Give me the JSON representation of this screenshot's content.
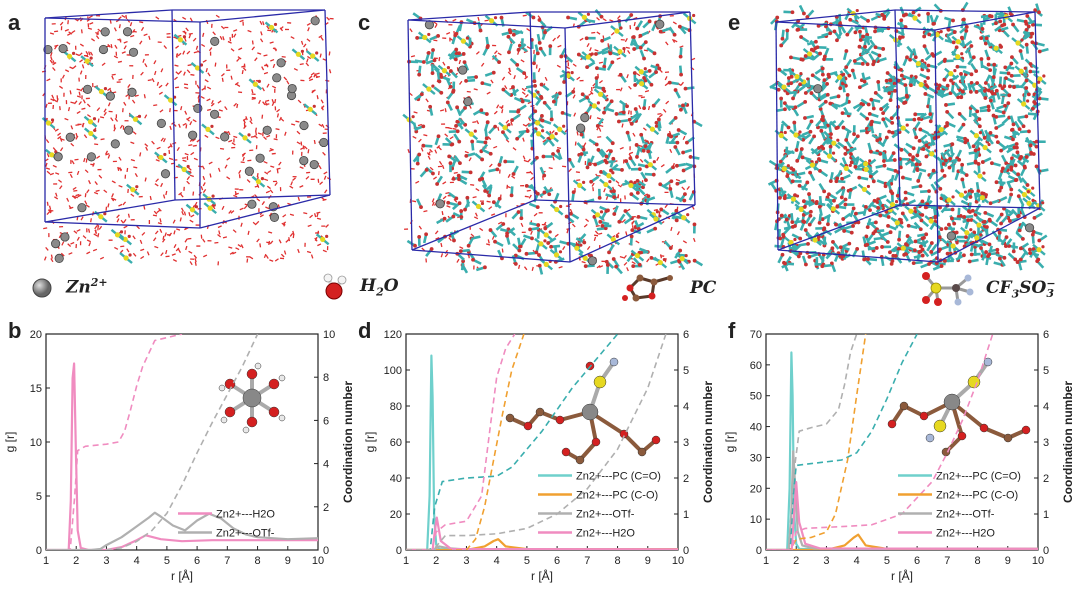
{
  "panel_labels": {
    "a": "a",
    "b": "b",
    "c": "c",
    "d": "d",
    "e": "e",
    "f": "f"
  },
  "species_legend": {
    "zn": {
      "base": "Zn",
      "sup": "2+"
    },
    "h2o": {
      "pre": "H",
      "sub": "2",
      "post": "O"
    },
    "pc": {
      "text": "PC"
    },
    "otf": {
      "pre": "CF",
      "sub1": "3",
      "mid": "SO",
      "sub2": "3",
      "sup": "−"
    }
  },
  "colors": {
    "box_edge": "#2a2aa8",
    "water": "#e03030",
    "zn": "#8a8a8a",
    "pc_body": "#3aaeae",
    "pc_oxygen": "#c83232",
    "sulfur": "#e6d820",
    "h2o_series": "#f08cc0",
    "otf_series": "#b0b0b0",
    "pc_co_double": "#6fd0cc",
    "pc_co_single": "#f0a030"
  },
  "chart_data": [
    {
      "type": "line",
      "panel": "b",
      "xlabel": "r [Å]",
      "ylabel": "g [r]",
      "y2label": "Coordination number",
      "xlim": [
        1,
        10
      ],
      "ylim": [
        0,
        22
      ],
      "y2lim": [
        0,
        10
      ],
      "xticks": [
        "1",
        "2",
        "3",
        "4",
        "5",
        "6",
        "7",
        "8",
        "9",
        "10"
      ],
      "yticks": [
        "0",
        "5",
        "10",
        "15",
        "20"
      ],
      "y2ticks": [
        "0",
        "2",
        "4",
        "6",
        "8",
        "10"
      ],
      "legend_position": "bottom-right",
      "series": [
        {
          "name": "Zn2+---H2O",
          "color": "#f08cc0",
          "style": "solid",
          "x": [
            1.0,
            1.75,
            1.82,
            1.88,
            1.93,
            1.99,
            2.05,
            2.15,
            2.4,
            3.0,
            3.5,
            4.0,
            4.3,
            4.8,
            5.5,
            6.5,
            7.5,
            8.5,
            10
          ],
          "y": [
            0,
            0,
            5,
            17.5,
            19,
            10,
            2,
            0.2,
            0,
            0,
            0.3,
            1.0,
            1.5,
            1.1,
            0.9,
            1.0,
            1.0,
            1.0,
            1.0
          ]
        },
        {
          "name": "Zn2+---OTf-",
          "color": "#b0b0b0",
          "style": "solid",
          "x": [
            1.0,
            2.5,
            2.8,
            3.0,
            3.5,
            4.0,
            4.4,
            4.6,
            4.8,
            5.2,
            5.6,
            6.0,
            6.4,
            6.8,
            7.2,
            7.6,
            8.0,
            8.5,
            9.0,
            10
          ],
          "y": [
            0,
            0,
            0.1,
            0.5,
            1.3,
            2.4,
            3.3,
            3.8,
            3.4,
            2.5,
            2.0,
            3.0,
            3.7,
            3.2,
            2.2,
            1.6,
            1.3,
            1.2,
            1.1,
            1.2
          ]
        },
        {
          "name": "",
          "axis": "y2",
          "color": "#f08cc0",
          "style": "dashed",
          "x": [
            1.0,
            1.8,
            1.95,
            2.05,
            2.3,
            3.0,
            3.4,
            3.6,
            3.8,
            4.0,
            4.2,
            4.6,
            5.5
          ],
          "y": [
            0,
            0,
            2.5,
            4.6,
            4.8,
            4.9,
            5.0,
            5.5,
            6.5,
            7.6,
            8.5,
            9.7,
            10
          ]
        },
        {
          "name": "",
          "axis": "y2",
          "color": "#b0b0b0",
          "style": "dashed",
          "x": [
            1.0,
            3.0,
            3.5,
            4.0,
            4.5,
            5.0,
            5.5,
            6.0,
            6.5,
            7.0,
            7.5,
            8.0
          ],
          "y": [
            0,
            0,
            0.1,
            0.4,
            0.9,
            1.7,
            3.0,
            4.5,
            5.9,
            7.2,
            8.5,
            10
          ]
        }
      ]
    },
    {
      "type": "line",
      "panel": "d",
      "xlabel": "r [Å]",
      "ylabel": "g [r]",
      "y2label": "Coordination number",
      "xlim": [
        1,
        10
      ],
      "ylim": [
        0,
        120
      ],
      "y2lim": [
        0,
        6
      ],
      "xticks": [
        "1",
        "2",
        "3",
        "4",
        "5",
        "6",
        "7",
        "8",
        "9",
        "10"
      ],
      "yticks": [
        "0",
        "20",
        "40",
        "60",
        "80",
        "100",
        "120"
      ],
      "y2ticks": [
        "0",
        "1",
        "2",
        "3",
        "4",
        "5",
        "6"
      ],
      "legend_position": "bottom-right",
      "series": [
        {
          "name": "Zn2+---PC (C=O)",
          "color": "#6fd0cc",
          "style": "solid",
          "x": [
            1.0,
            1.7,
            1.78,
            1.84,
            1.88,
            1.93,
            2.0,
            2.1,
            3.0,
            10
          ],
          "y": [
            0,
            0,
            30,
            108,
            85,
            20,
            3,
            0.5,
            0.3,
            0.5
          ]
        },
        {
          "name": "Zn2+---PC (C-O)",
          "color": "#f0a030",
          "style": "solid",
          "x": [
            1.0,
            3.0,
            3.6,
            3.9,
            4.05,
            4.3,
            5.0,
            10
          ],
          "y": [
            0,
            0,
            2,
            5,
            6,
            2,
            0.5,
            0.5
          ]
        },
        {
          "name": "Zn2+---OTf-",
          "color": "#b0b0b0",
          "style": "solid",
          "x": [
            1.0,
            1.9,
            2.1,
            2.4,
            3.0,
            10
          ],
          "y": [
            0,
            0,
            2,
            1,
            0.3,
            0.3
          ]
        },
        {
          "name": "Zn2+---H2O",
          "color": "#f08cc0",
          "style": "solid",
          "x": [
            1.0,
            1.88,
            1.95,
            2.02,
            2.15,
            2.5,
            10
          ],
          "y": [
            0,
            0,
            10,
            18,
            5,
            0.5,
            0.4
          ]
        },
        {
          "name": "",
          "axis": "y2",
          "color": "#3aaeae",
          "style": "dashed",
          "x": [
            1.0,
            1.8,
            1.95,
            2.2,
            3.0,
            4.0,
            4.5,
            5.0,
            5.5,
            6.0,
            6.5,
            7.0,
            7.5,
            8.0
          ],
          "y": [
            0,
            0,
            1.2,
            1.9,
            2.0,
            2.05,
            2.3,
            2.8,
            3.3,
            3.9,
            4.5,
            5.0,
            5.5,
            6.0
          ]
        },
        {
          "name": "",
          "axis": "y2",
          "color": "#f0a030",
          "style": "dashed",
          "x": [
            1.0,
            3.0,
            3.3,
            3.6,
            3.9,
            4.2,
            4.5,
            4.9
          ],
          "y": [
            0,
            0,
            0.3,
            1.2,
            2.5,
            3.8,
            5.0,
            6.0
          ]
        },
        {
          "name": "",
          "axis": "y2",
          "color": "#f08cc0",
          "style": "dashed",
          "x": [
            1.0,
            1.85,
            2.0,
            2.3,
            3.0,
            3.5,
            3.8,
            4.0,
            4.3,
            4.6
          ],
          "y": [
            0,
            0,
            0.5,
            0.7,
            0.8,
            1.5,
            3.5,
            4.8,
            5.6,
            6.0
          ]
        },
        {
          "name": "",
          "axis": "y2",
          "color": "#b0b0b0",
          "style": "dashed",
          "x": [
            1.0,
            1.9,
            2.3,
            3.0,
            4.0,
            5.0,
            6.0,
            7.0,
            8.0,
            9.0,
            9.6
          ],
          "y": [
            0,
            0,
            0.4,
            0.4,
            0.45,
            0.6,
            1.0,
            1.7,
            2.8,
            4.5,
            6.0
          ]
        }
      ]
    },
    {
      "type": "line",
      "panel": "f",
      "xlabel": "r [Å]",
      "ylabel": "g [r]",
      "y2label": "Coordination number",
      "xlim": [
        1,
        10
      ],
      "ylim": [
        0,
        70
      ],
      "y2lim": [
        0,
        6
      ],
      "xticks": [
        "1",
        "2",
        "3",
        "4",
        "5",
        "6",
        "7",
        "8",
        "9",
        "10"
      ],
      "yticks": [
        "0",
        "10",
        "20",
        "30",
        "40",
        "50",
        "60",
        "70"
      ],
      "y2ticks": [
        "0",
        "1",
        "2",
        "3",
        "4",
        "5",
        "6"
      ],
      "legend_position": "bottom-right",
      "series": [
        {
          "name": "Zn2+---PC (C=O)",
          "color": "#6fd0cc",
          "style": "solid",
          "x": [
            1.0,
            1.7,
            1.78,
            1.84,
            1.88,
            1.93,
            2.0,
            2.1,
            3.0,
            10
          ],
          "y": [
            0,
            0,
            20,
            64,
            50,
            12,
            2,
            0.4,
            0.3,
            0.4
          ]
        },
        {
          "name": "Zn2+---PC (C-O)",
          "color": "#f0a030",
          "style": "solid",
          "x": [
            1.0,
            3.0,
            3.6,
            3.9,
            4.05,
            4.3,
            5.0,
            10
          ],
          "y": [
            0,
            0,
            1.5,
            4,
            5,
            1.5,
            0.4,
            0.4
          ]
        },
        {
          "name": "Zn2+---OTf-",
          "color": "#b0b0b0",
          "style": "solid",
          "x": [
            1.0,
            1.75,
            1.83,
            1.9,
            1.97,
            2.05,
            2.2,
            2.6,
            10
          ],
          "y": [
            0,
            0,
            10,
            32,
            20,
            6,
            1.5,
            0.5,
            0.4
          ]
        },
        {
          "name": "Zn2+---H2O",
          "color": "#f08cc0",
          "style": "solid",
          "x": [
            1.0,
            1.85,
            1.93,
            2.0,
            2.1,
            2.3,
            2.8,
            10
          ],
          "y": [
            0,
            0,
            12,
            22,
            9,
            2,
            0.5,
            0.4
          ]
        },
        {
          "name": "",
          "axis": "y2",
          "color": "#3aaeae",
          "style": "dashed",
          "x": [
            1.0,
            1.8,
            1.9,
            2.0,
            2.5,
            3.5,
            4.0,
            4.5,
            5.0,
            5.5,
            6.0
          ],
          "y": [
            0,
            0,
            1.5,
            2.35,
            2.4,
            2.5,
            2.7,
            3.3,
            4.2,
            5.2,
            6.0
          ]
        },
        {
          "name": "",
          "axis": "y2",
          "color": "#f0a030",
          "style": "dashed",
          "x": [
            1.0,
            1.8,
            2.0,
            2.5,
            3.0,
            3.3,
            3.7,
            4.0,
            4.3
          ],
          "y": [
            0,
            0,
            0.3,
            0.35,
            0.5,
            1.0,
            2.5,
            4.3,
            6.0
          ]
        },
        {
          "name": "",
          "axis": "y2",
          "color": "#b0b0b0",
          "style": "dashed",
          "x": [
            1.0,
            1.75,
            1.9,
            2.1,
            2.5,
            3.0,
            3.4,
            3.6,
            3.8,
            4.0
          ],
          "y": [
            0,
            0,
            2.0,
            3.3,
            3.4,
            3.5,
            3.9,
            4.6,
            5.5,
            6.0
          ]
        },
        {
          "name": "",
          "axis": "y2",
          "color": "#f08cc0",
          "style": "dashed",
          "x": [
            1.0,
            1.85,
            2.0,
            2.3,
            3.5,
            4.5,
            5.5,
            6.5,
            7.0,
            7.5,
            8.0,
            8.5
          ],
          "y": [
            0,
            0,
            0.5,
            0.6,
            0.65,
            0.7,
            1.0,
            1.9,
            2.7,
            3.6,
            4.7,
            6.0
          ]
        }
      ]
    }
  ]
}
